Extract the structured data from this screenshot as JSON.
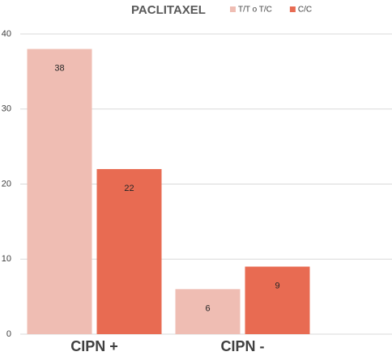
{
  "chart_data": {
    "type": "bar",
    "title": "PACLITAXEL",
    "categories": [
      "CIPN +",
      "CIPN -"
    ],
    "series": [
      {
        "name": "T/T o T/C",
        "color": "#efbdb3",
        "values": [
          38,
          6
        ]
      },
      {
        "name": "C/C",
        "color": "#e86b52",
        "values": [
          22,
          9
        ]
      }
    ],
    "ylim": [
      0,
      40
    ],
    "yticks": [
      0,
      10,
      20,
      30,
      40
    ],
    "grid": true
  }
}
